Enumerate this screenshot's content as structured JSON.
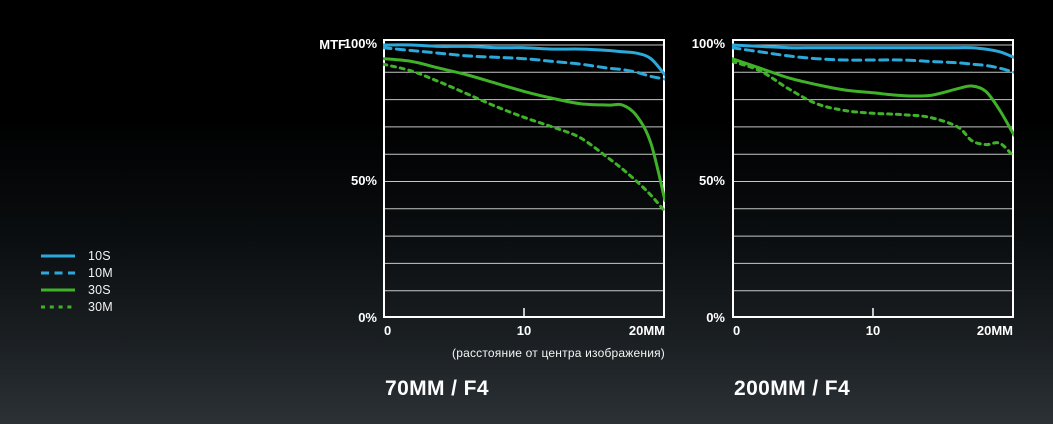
{
  "legend": {
    "items": [
      {
        "label": "10S",
        "color": "#2BA9DB",
        "line": "solid"
      },
      {
        "label": "10M",
        "color": "#2BA9DB",
        "line": "dashed_long"
      },
      {
        "label": "30S",
        "color": "#3FB229",
        "line": "solid"
      },
      {
        "label": "30M",
        "color": "#3FB229",
        "line": "dashed_short"
      }
    ]
  },
  "colors": {
    "blue": "#2BA9DB",
    "green": "#3FB229",
    "grid": "#e8e8e8",
    "frame": "#ffffff",
    "text": "#ffffff"
  },
  "chart_data": [
    {
      "type": "line",
      "title": "70MM / F4",
      "ylabel": "MTF",
      "xlabel": "(расстояние от центра изображения)",
      "x_unit": "mm from image center",
      "xlim": [
        0,
        20
      ],
      "ylim": [
        0,
        100
      ],
      "grid": "horizontal lines every 10%",
      "legend_position": "outside left",
      "y_tick_labels": [
        "100%",
        "50%",
        "0%"
      ],
      "x_tick_labels": [
        "0",
        "10",
        "20MM"
      ],
      "x": [
        0,
        2,
        4,
        6,
        8,
        10,
        12,
        14,
        16,
        17,
        18,
        19,
        20
      ],
      "series": [
        {
          "name": "10S",
          "color": "#2BA9DB",
          "line": "solid",
          "values": [
            100,
            100,
            99.5,
            99.5,
            99,
            99,
            98.5,
            98.5,
            98,
            97.5,
            97,
            95,
            89
          ]
        },
        {
          "name": "10M",
          "color": "#2BA9DB",
          "line": "dashed_long",
          "values": [
            99,
            98,
            97,
            96,
            95.5,
            95,
            94,
            93,
            91.5,
            91,
            90,
            88.5,
            87.5
          ]
        },
        {
          "name": "30S",
          "color": "#3FB229",
          "line": "solid",
          "values": [
            95,
            94,
            91.5,
            89,
            86,
            83,
            80.5,
            78.5,
            78,
            78,
            74,
            64,
            43
          ]
        },
        {
          "name": "30M",
          "color": "#3FB229",
          "line": "dashed_short",
          "values": [
            93,
            90.5,
            86.5,
            82,
            77.5,
            73.5,
            70,
            66,
            58.5,
            54.5,
            50,
            45,
            39
          ]
        }
      ]
    },
    {
      "type": "line",
      "title": "200MM / F4",
      "ylabel": "",
      "xlabel": "",
      "x_unit": "mm from image center",
      "xlim": [
        0,
        20
      ],
      "ylim": [
        0,
        100
      ],
      "grid": "horizontal lines every 10%",
      "legend_position": "shared outside left",
      "y_tick_labels": [
        "100%",
        "50%",
        "0%"
      ],
      "x_tick_labels": [
        "0",
        "10",
        "20MM"
      ],
      "x": [
        0,
        2,
        4,
        6,
        8,
        10,
        12,
        14,
        16,
        17,
        18,
        19,
        20
      ],
      "series": [
        {
          "name": "10S",
          "color": "#2BA9DB",
          "line": "solid",
          "values": [
            100,
            99.5,
            99,
            99,
            99,
            99,
            99,
            99,
            99,
            99,
            98.5,
            97.5,
            95.5
          ]
        },
        {
          "name": "10M",
          "color": "#2BA9DB",
          "line": "dashed_long",
          "values": [
            99,
            97.5,
            96,
            95,
            94.5,
            94.5,
            94.5,
            94,
            93.5,
            93,
            92.5,
            91.5,
            90
          ]
        },
        {
          "name": "30S",
          "color": "#3FB229",
          "line": "solid",
          "values": [
            95,
            91.5,
            88,
            85.5,
            83.5,
            82.5,
            81.5,
            81.5,
            84,
            85,
            83,
            76,
            67
          ]
        },
        {
          "name": "30M",
          "color": "#3FB229",
          "line": "dashed_short",
          "values": [
            94,
            90.5,
            84,
            78.5,
            76,
            75,
            74.5,
            73.5,
            70,
            65,
            63.5,
            64,
            59
          ]
        }
      ]
    }
  ]
}
